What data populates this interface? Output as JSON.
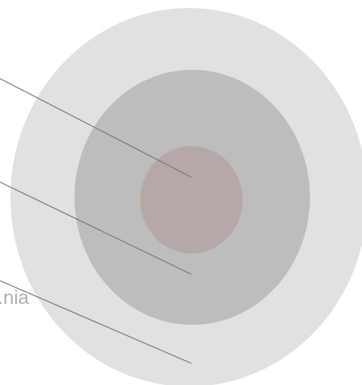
{
  "diagram": {
    "rings": [
      {
        "name": "outer-ring",
        "color": "#e1e1e1"
      },
      {
        "name": "middle-ring",
        "color": "#bdbdbd"
      },
      {
        "name": "inner-core",
        "color": "#b5a9a8"
      }
    ],
    "leader_line_color": "#777777",
    "visible_text_fragment": "nia.",
    "text_color": "#b1b1b1"
  }
}
